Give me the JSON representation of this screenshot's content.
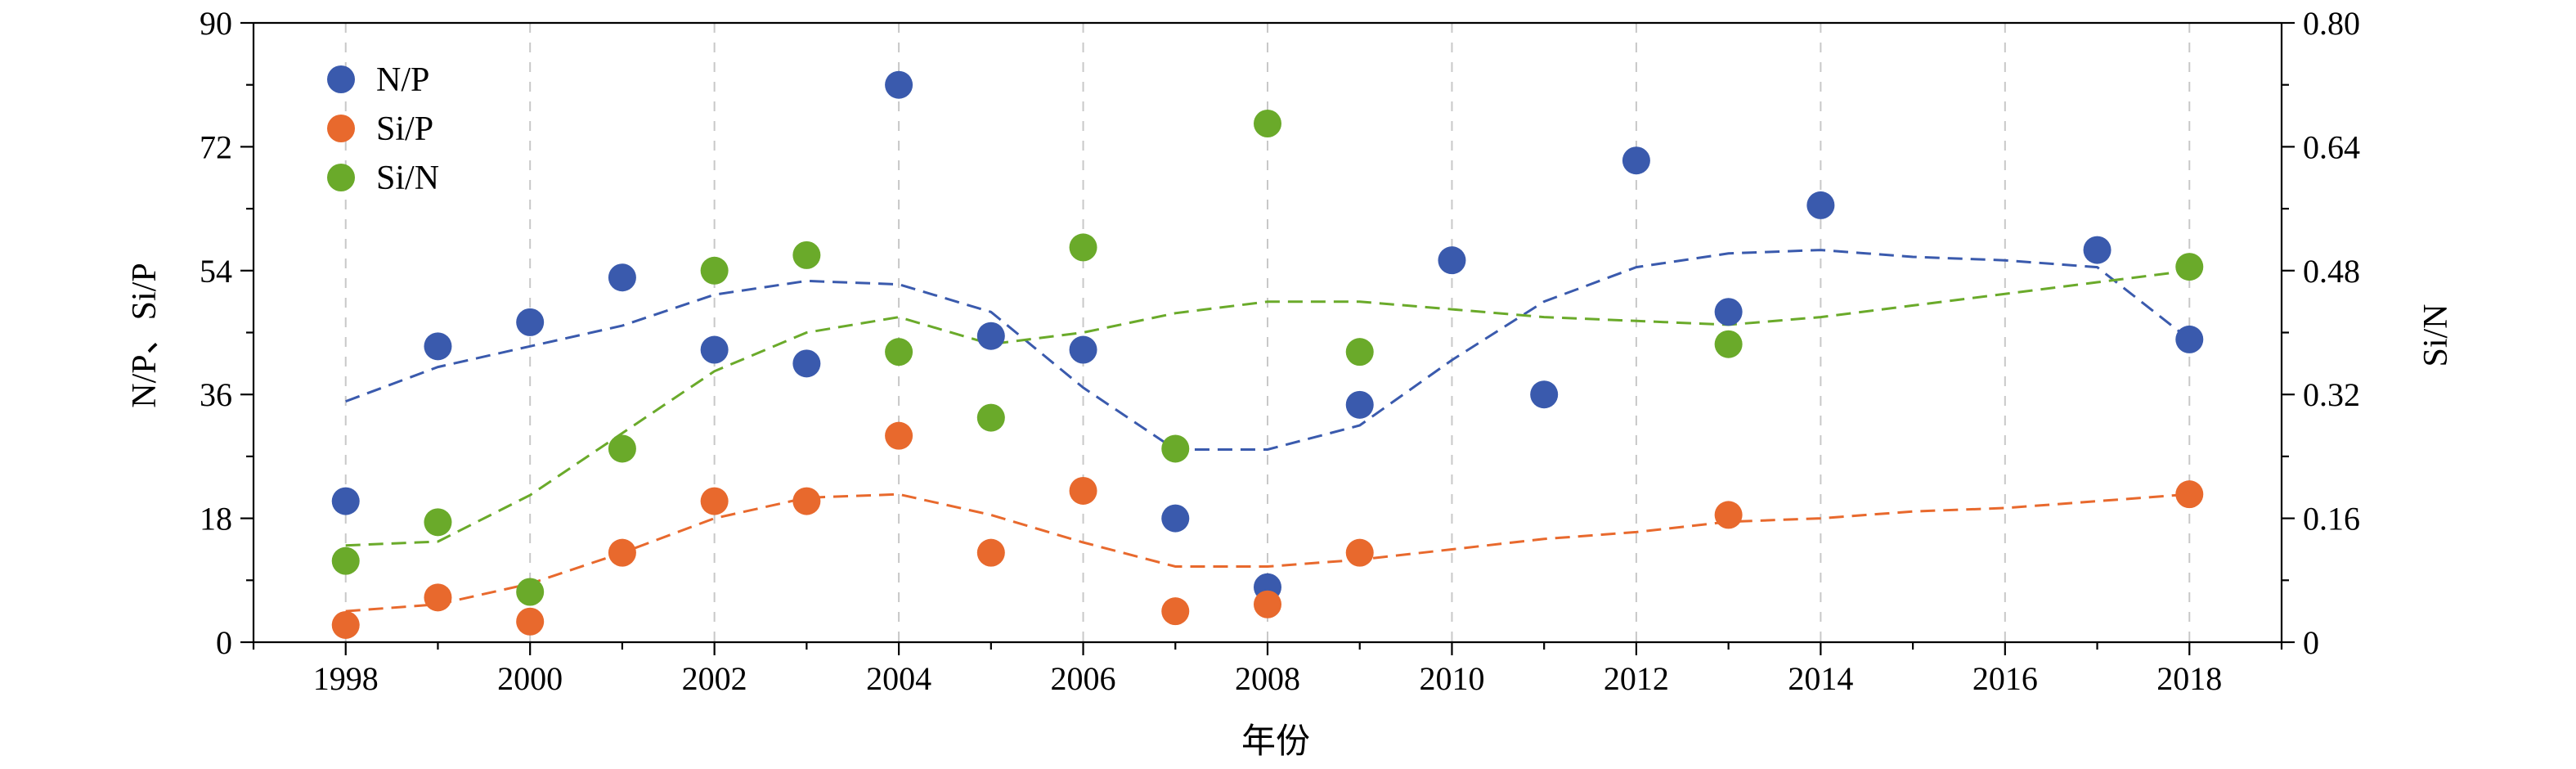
{
  "chart_data": {
    "type": "scatter",
    "xlabel": "年份",
    "ylabel_left": "N/P、Si/P",
    "ylabel_right": "Si/N",
    "xlim": [
      1997,
      2019
    ],
    "ylim_left": [
      0,
      90
    ],
    "ylim_right": [
      0,
      0.8
    ],
    "x_ticks": [
      1998,
      2000,
      2002,
      2004,
      2006,
      2008,
      2010,
      2012,
      2014,
      2016,
      2018
    ],
    "x_minor_ticks": [
      1997,
      1999,
      2001,
      2003,
      2005,
      2007,
      2009,
      2011,
      2013,
      2015,
      2017,
      2019
    ],
    "y_ticks_left": [
      "0",
      "18",
      "36",
      "54",
      "72",
      "90"
    ],
    "y_ticks_right": [
      "0",
      "0.16",
      "0.32",
      "0.48",
      "0.64",
      "0.80"
    ],
    "grid": "vertical dashed at major x ticks",
    "legend_position": "top-left",
    "series": [
      {
        "name": "N/P",
        "axis": "left",
        "color": "#3a5aad",
        "points": [
          [
            1998,
            20.5
          ],
          [
            1999,
            43.0
          ],
          [
            2000,
            46.5
          ],
          [
            2001,
            53.0
          ],
          [
            2002,
            42.5
          ],
          [
            2003,
            40.5
          ],
          [
            2004,
            81.0
          ],
          [
            2005,
            44.5
          ],
          [
            2006,
            42.5
          ],
          [
            2007,
            18.0
          ],
          [
            2008,
            8.0
          ],
          [
            2009,
            34.5
          ],
          [
            2010,
            55.5
          ],
          [
            2011,
            36.0
          ],
          [
            2012,
            70.0
          ],
          [
            2013,
            48.0
          ],
          [
            2014,
            63.5
          ],
          [
            2017,
            57.0
          ],
          [
            2018,
            44.0
          ]
        ],
        "trend": [
          [
            1998,
            35.0
          ],
          [
            1999,
            40.0
          ],
          [
            2000,
            43.0
          ],
          [
            2001,
            46.0
          ],
          [
            2002,
            50.5
          ],
          [
            2003,
            52.5
          ],
          [
            2004,
            52.0
          ],
          [
            2005,
            48.0
          ],
          [
            2006,
            37.0
          ],
          [
            2007,
            28.0
          ],
          [
            2008,
            28.0
          ],
          [
            2009,
            31.5
          ],
          [
            2010,
            41.0
          ],
          [
            2011,
            49.5
          ],
          [
            2012,
            54.5
          ],
          [
            2013,
            56.5
          ],
          [
            2014,
            57.0
          ],
          [
            2015,
            56.0
          ],
          [
            2016,
            55.5
          ],
          [
            2017,
            54.5
          ],
          [
            2018,
            44.0
          ]
        ]
      },
      {
        "name": "Si/P",
        "axis": "left",
        "color": "#e8692d",
        "points": [
          [
            1998,
            2.5
          ],
          [
            1999,
            6.5
          ],
          [
            2000,
            3.0
          ],
          [
            2001,
            13.0
          ],
          [
            2002,
            20.5
          ],
          [
            2003,
            20.5
          ],
          [
            2004,
            30.0
          ],
          [
            2005,
            13.0
          ],
          [
            2006,
            22.0
          ],
          [
            2007,
            4.5
          ],
          [
            2008,
            5.5
          ],
          [
            2009,
            13.0
          ],
          [
            2013,
            18.5
          ],
          [
            2018,
            21.5
          ]
        ],
        "trend": [
          [
            1998,
            4.5
          ],
          [
            1999,
            5.5
          ],
          [
            2000,
            8.5
          ],
          [
            2001,
            13.0
          ],
          [
            2002,
            18.0
          ],
          [
            2003,
            21.0
          ],
          [
            2004,
            21.5
          ],
          [
            2005,
            18.5
          ],
          [
            2006,
            14.5
          ],
          [
            2007,
            11.0
          ],
          [
            2008,
            11.0
          ],
          [
            2009,
            12.0
          ],
          [
            2010,
            13.5
          ],
          [
            2011,
            15.0
          ],
          [
            2012,
            16.0
          ],
          [
            2013,
            17.5
          ],
          [
            2014,
            18.0
          ],
          [
            2015,
            19.0
          ],
          [
            2016,
            19.5
          ],
          [
            2017,
            20.5
          ],
          [
            2018,
            21.5
          ]
        ]
      },
      {
        "name": "Si/N",
        "axis": "right",
        "color": "#6aaa2a",
        "points": [
          [
            1998,
            0.105
          ],
          [
            1999,
            0.155
          ],
          [
            2000,
            0.065
          ],
          [
            2001,
            0.25
          ],
          [
            2002,
            0.48
          ],
          [
            2003,
            0.5
          ],
          [
            2004,
            0.375
          ],
          [
            2005,
            0.29
          ],
          [
            2006,
            0.51
          ],
          [
            2007,
            0.25
          ],
          [
            2008,
            0.67
          ],
          [
            2009,
            0.375
          ],
          [
            2013,
            0.385
          ],
          [
            2018,
            0.485
          ]
        ],
        "trend": [
          [
            1998,
            0.125
          ],
          [
            1999,
            0.13
          ],
          [
            2000,
            0.19
          ],
          [
            2001,
            0.27
          ],
          [
            2002,
            0.35
          ],
          [
            2003,
            0.4
          ],
          [
            2004,
            0.42
          ],
          [
            2005,
            0.385
          ],
          [
            2006,
            0.4
          ],
          [
            2007,
            0.425
          ],
          [
            2008,
            0.44
          ],
          [
            2009,
            0.44
          ],
          [
            2010,
            0.43
          ],
          [
            2011,
            0.42
          ],
          [
            2012,
            0.415
          ],
          [
            2013,
            0.41
          ],
          [
            2014,
            0.42
          ],
          [
            2015,
            0.435
          ],
          [
            2016,
            0.45
          ],
          [
            2017,
            0.465
          ],
          [
            2018,
            0.48
          ]
        ]
      }
    ]
  }
}
